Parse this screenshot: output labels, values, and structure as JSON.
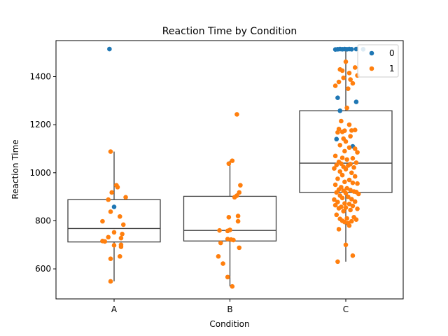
{
  "chart_data": {
    "type": "box-strip",
    "title": "Reaction Time by Condition",
    "xlabel": "Condition",
    "ylabel": "Reaction Time",
    "categories": [
      "A",
      "B",
      "C"
    ],
    "ylim": [
      475,
      1550
    ],
    "yticks": [
      600,
      800,
      1000,
      1200,
      1400
    ],
    "grid": false,
    "legend_position": "top-right",
    "boxes": [
      {
        "category": "A",
        "whisker_low": 548,
        "q1": 712,
        "median": 768,
        "q3": 888,
        "whisker_high": 1088
      },
      {
        "category": "B",
        "whisker_low": 527,
        "q1": 716,
        "median": 760,
        "q3": 902,
        "whisker_high": 1050
      },
      {
        "category": "C",
        "whisker_low": 630,
        "q1": 918,
        "median": 1040,
        "q3": 1258,
        "whisker_high": 1513
      }
    ],
    "series": [
      {
        "name": "0",
        "color": "#1f77b4",
        "points": [
          {
            "category": "A",
            "offset": -0.04,
            "value": 1515
          },
          {
            "category": "A",
            "offset": 0.0,
            "value": 858
          },
          {
            "category": "C",
            "offset": -0.09,
            "value": 1513
          },
          {
            "category": "C",
            "offset": -0.07,
            "value": 1514
          },
          {
            "category": "C",
            "offset": -0.05,
            "value": 1515
          },
          {
            "category": "C",
            "offset": -0.03,
            "value": 1514
          },
          {
            "category": "C",
            "offset": -0.01,
            "value": 1515
          },
          {
            "category": "C",
            "offset": 0.01,
            "value": 1514
          },
          {
            "category": "C",
            "offset": 0.03,
            "value": 1515
          },
          {
            "category": "C",
            "offset": 0.05,
            "value": 1514
          },
          {
            "category": "C",
            "offset": 0.09,
            "value": 1515
          },
          {
            "category": "C",
            "offset": 0.15,
            "value": 1514
          },
          {
            "category": "C",
            "offset": -0.07,
            "value": 1312
          },
          {
            "category": "C",
            "offset": 0.09,
            "value": 1295
          },
          {
            "category": "C",
            "offset": -0.05,
            "value": 1258
          },
          {
            "category": "C",
            "offset": -0.08,
            "value": 1140
          },
          {
            "category": "C",
            "offset": 0.06,
            "value": 1110
          }
        ]
      },
      {
        "name": "1",
        "color": "#ff7f0e",
        "points": [
          {
            "category": "A",
            "offset": -0.03,
            "value": 1088
          },
          {
            "category": "A",
            "offset": 0.02,
            "value": 948
          },
          {
            "category": "A",
            "offset": 0.03,
            "value": 940
          },
          {
            "category": "A",
            "offset": -0.02,
            "value": 918
          },
          {
            "category": "A",
            "offset": 0.1,
            "value": 898
          },
          {
            "category": "A",
            "offset": -0.05,
            "value": 888
          },
          {
            "category": "A",
            "offset": -0.03,
            "value": 838
          },
          {
            "category": "A",
            "offset": 0.05,
            "value": 818
          },
          {
            "category": "A",
            "offset": -0.1,
            "value": 798
          },
          {
            "category": "A",
            "offset": 0.08,
            "value": 784
          },
          {
            "category": "A",
            "offset": 0.0,
            "value": 752
          },
          {
            "category": "A",
            "offset": 0.07,
            "value": 745
          },
          {
            "category": "A",
            "offset": -0.05,
            "value": 732
          },
          {
            "category": "A",
            "offset": 0.06,
            "value": 728
          },
          {
            "category": "A",
            "offset": -0.1,
            "value": 716
          },
          {
            "category": "A",
            "offset": -0.08,
            "value": 714
          },
          {
            "category": "A",
            "offset": 0.06,
            "value": 700
          },
          {
            "category": "A",
            "offset": 0.0,
            "value": 698
          },
          {
            "category": "A",
            "offset": 0.06,
            "value": 692
          },
          {
            "category": "A",
            "offset": 0.05,
            "value": 652
          },
          {
            "category": "A",
            "offset": -0.03,
            "value": 642
          },
          {
            "category": "A",
            "offset": -0.03,
            "value": 548
          },
          {
            "category": "B",
            "offset": 0.06,
            "value": 1243
          },
          {
            "category": "B",
            "offset": 0.02,
            "value": 1050
          },
          {
            "category": "B",
            "offset": -0.01,
            "value": 1038
          },
          {
            "category": "B",
            "offset": 0.09,
            "value": 948
          },
          {
            "category": "B",
            "offset": 0.08,
            "value": 918
          },
          {
            "category": "B",
            "offset": 0.06,
            "value": 905
          },
          {
            "category": "B",
            "offset": 0.04,
            "value": 898
          },
          {
            "category": "B",
            "offset": -0.01,
            "value": 815
          },
          {
            "category": "B",
            "offset": 0.07,
            "value": 820
          },
          {
            "category": "B",
            "offset": 0.07,
            "value": 798
          },
          {
            "category": "B",
            "offset": -0.09,
            "value": 760
          },
          {
            "category": "B",
            "offset": -0.02,
            "value": 758
          },
          {
            "category": "B",
            "offset": 0.0,
            "value": 762
          },
          {
            "category": "B",
            "offset": -0.02,
            "value": 724
          },
          {
            "category": "B",
            "offset": 0.01,
            "value": 722
          },
          {
            "category": "B",
            "offset": 0.03,
            "value": 720
          },
          {
            "category": "B",
            "offset": -0.08,
            "value": 708
          },
          {
            "category": "B",
            "offset": 0.08,
            "value": 688
          },
          {
            "category": "B",
            "offset": -0.1,
            "value": 652
          },
          {
            "category": "B",
            "offset": -0.06,
            "value": 622
          },
          {
            "category": "B",
            "offset": -0.02,
            "value": 566
          },
          {
            "category": "B",
            "offset": 0.02,
            "value": 527
          },
          {
            "category": "C",
            "offset": 0.0,
            "value": 1462
          },
          {
            "category": "C",
            "offset": 0.08,
            "value": 1438
          },
          {
            "category": "C",
            "offset": -0.05,
            "value": 1430
          },
          {
            "category": "C",
            "offset": -0.03,
            "value": 1425
          },
          {
            "category": "C",
            "offset": 0.03,
            "value": 1415
          },
          {
            "category": "C",
            "offset": 0.1,
            "value": 1405
          },
          {
            "category": "C",
            "offset": -0.02,
            "value": 1395
          },
          {
            "category": "C",
            "offset": 0.04,
            "value": 1388
          },
          {
            "category": "C",
            "offset": -0.06,
            "value": 1378
          },
          {
            "category": "C",
            "offset": 0.06,
            "value": 1372
          },
          {
            "category": "C",
            "offset": -0.09,
            "value": 1362
          },
          {
            "category": "C",
            "offset": 0.02,
            "value": 1350
          },
          {
            "category": "C",
            "offset": 0.01,
            "value": 1270
          },
          {
            "category": "C",
            "offset": -0.04,
            "value": 1215
          },
          {
            "category": "C",
            "offset": 0.03,
            "value": 1200
          },
          {
            "category": "C",
            "offset": -0.06,
            "value": 1182
          },
          {
            "category": "C",
            "offset": 0.08,
            "value": 1178
          },
          {
            "category": "C",
            "offset": 0.05,
            "value": 1176
          },
          {
            "category": "C",
            "offset": -0.01,
            "value": 1175
          },
          {
            "category": "C",
            "offset": -0.03,
            "value": 1170
          },
          {
            "category": "C",
            "offset": -0.07,
            "value": 1168
          },
          {
            "category": "C",
            "offset": 0.04,
            "value": 1152
          },
          {
            "category": "C",
            "offset": -0.02,
            "value": 1142
          },
          {
            "category": "C",
            "offset": 0.0,
            "value": 1130
          },
          {
            "category": "C",
            "offset": -0.05,
            "value": 1115
          },
          {
            "category": "C",
            "offset": 0.03,
            "value": 1105
          },
          {
            "category": "C",
            "offset": 0.08,
            "value": 1100
          },
          {
            "category": "C",
            "offset": -0.01,
            "value": 1090
          },
          {
            "category": "C",
            "offset": 0.1,
            "value": 1085
          },
          {
            "category": "C",
            "offset": -0.09,
            "value": 1070
          },
          {
            "category": "C",
            "offset": -0.03,
            "value": 1062
          },
          {
            "category": "C",
            "offset": 0.06,
            "value": 1060
          },
          {
            "category": "C",
            "offset": 0.01,
            "value": 1055
          },
          {
            "category": "C",
            "offset": -0.06,
            "value": 1045
          },
          {
            "category": "C",
            "offset": 0.09,
            "value": 1042
          },
          {
            "category": "C",
            "offset": -0.04,
            "value": 1038
          },
          {
            "category": "C",
            "offset": 0.04,
            "value": 1036
          },
          {
            "category": "C",
            "offset": -0.08,
            "value": 1032
          },
          {
            "category": "C",
            "offset": 0.02,
            "value": 1030
          },
          {
            "category": "C",
            "offset": -0.02,
            "value": 1025
          },
          {
            "category": "C",
            "offset": 0.07,
            "value": 1022
          },
          {
            "category": "C",
            "offset": -0.1,
            "value": 1018
          },
          {
            "category": "C",
            "offset": 0.0,
            "value": 1015
          },
          {
            "category": "C",
            "offset": -0.05,
            "value": 1005
          },
          {
            "category": "C",
            "offset": 0.05,
            "value": 1000
          },
          {
            "category": "C",
            "offset": -0.03,
            "value": 990
          },
          {
            "category": "C",
            "offset": 0.08,
            "value": 985
          },
          {
            "category": "C",
            "offset": -0.07,
            "value": 975
          },
          {
            "category": "C",
            "offset": 0.03,
            "value": 970
          },
          {
            "category": "C",
            "offset": -0.01,
            "value": 962
          },
          {
            "category": "C",
            "offset": 0.06,
            "value": 958
          },
          {
            "category": "C",
            "offset": 0.1,
            "value": 955
          },
          {
            "category": "C",
            "offset": -0.09,
            "value": 950
          },
          {
            "category": "C",
            "offset": -0.04,
            "value": 940
          },
          {
            "category": "C",
            "offset": 0.01,
            "value": 935
          },
          {
            "category": "C",
            "offset": -0.06,
            "value": 930
          },
          {
            "category": "C",
            "offset": 0.04,
            "value": 928
          },
          {
            "category": "C",
            "offset": -0.02,
            "value": 925
          },
          {
            "category": "C",
            "offset": 0.07,
            "value": 922
          },
          {
            "category": "C",
            "offset": 0.09,
            "value": 920
          },
          {
            "category": "C",
            "offset": -0.08,
            "value": 918
          },
          {
            "category": "C",
            "offset": 0.0,
            "value": 915
          },
          {
            "category": "C",
            "offset": 0.11,
            "value": 912
          },
          {
            "category": "C",
            "offset": -0.05,
            "value": 905
          },
          {
            "category": "C",
            "offset": 0.02,
            "value": 900
          },
          {
            "category": "C",
            "offset": -0.03,
            "value": 895
          },
          {
            "category": "C",
            "offset": 0.05,
            "value": 890
          },
          {
            "category": "C",
            "offset": -0.1,
            "value": 888
          },
          {
            "category": "C",
            "offset": 0.08,
            "value": 880
          },
          {
            "category": "C",
            "offset": -0.07,
            "value": 878
          },
          {
            "category": "C",
            "offset": -0.01,
            "value": 872
          },
          {
            "category": "C",
            "offset": 0.03,
            "value": 870
          },
          {
            "category": "C",
            "offset": -0.09,
            "value": 865
          },
          {
            "category": "C",
            "offset": 0.06,
            "value": 862
          },
          {
            "category": "C",
            "offset": -0.04,
            "value": 858
          },
          {
            "category": "C",
            "offset": 0.0,
            "value": 855
          },
          {
            "category": "C",
            "offset": -0.06,
            "value": 852
          },
          {
            "category": "C",
            "offset": 0.1,
            "value": 850
          },
          {
            "category": "C",
            "offset": 0.04,
            "value": 845
          },
          {
            "category": "C",
            "offset": -0.02,
            "value": 840
          },
          {
            "category": "C",
            "offset": -0.08,
            "value": 825
          },
          {
            "category": "C",
            "offset": 0.07,
            "value": 815
          },
          {
            "category": "C",
            "offset": 0.01,
            "value": 810
          },
          {
            "category": "C",
            "offset": -0.05,
            "value": 808
          },
          {
            "category": "C",
            "offset": 0.09,
            "value": 805
          },
          {
            "category": "C",
            "offset": -0.03,
            "value": 800
          },
          {
            "category": "C",
            "offset": 0.05,
            "value": 798
          },
          {
            "category": "C",
            "offset": -0.01,
            "value": 795
          },
          {
            "category": "C",
            "offset": 0.02,
            "value": 790
          },
          {
            "category": "C",
            "offset": 0.03,
            "value": 780
          },
          {
            "category": "C",
            "offset": -0.06,
            "value": 765
          },
          {
            "category": "C",
            "offset": 0.0,
            "value": 700
          },
          {
            "category": "C",
            "offset": 0.06,
            "value": 655
          },
          {
            "category": "C",
            "offset": -0.07,
            "value": 630
          }
        ]
      }
    ]
  }
}
